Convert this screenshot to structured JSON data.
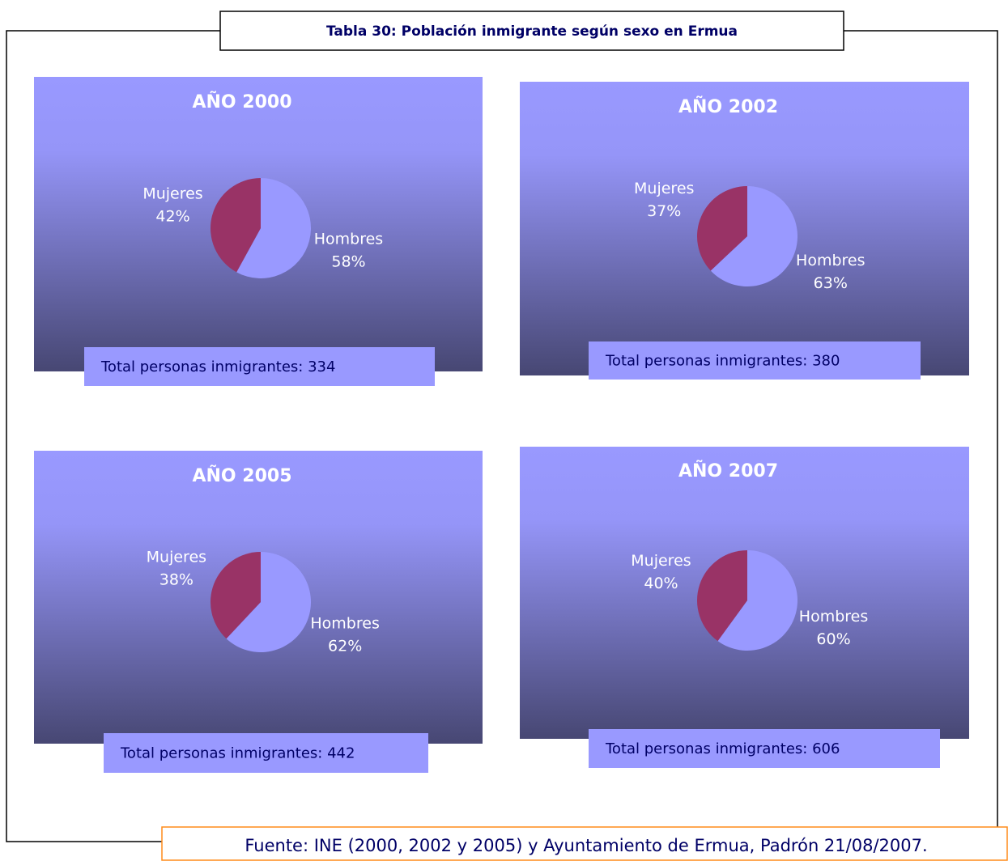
{
  "title": "Tabla 30: Población inmigrante según sexo en Ermua",
  "source": "Fuente: INE (2000, 2002 y 2005) y Ayuntamiento de Ermua, Padrón 21/08/2007.",
  "chart_data": [
    {
      "type": "pie",
      "title": "AÑO 2000",
      "categories": [
        "Hombres",
        "Mujeres"
      ],
      "values": [
        58,
        42
      ],
      "value_labels": [
        "58%",
        "42%"
      ],
      "colors": [
        "#9999ff",
        "#993366"
      ],
      "note": "Total personas inmigrantes: 334"
    },
    {
      "type": "pie",
      "title": "AÑO 2002",
      "categories": [
        "Hombres",
        "Mujeres"
      ],
      "values": [
        63,
        37
      ],
      "value_labels": [
        "63%",
        "37%"
      ],
      "colors": [
        "#9999ff",
        "#993366"
      ],
      "note": "Total personas inmigrantes: 380"
    },
    {
      "type": "pie",
      "title": "AÑO 2005",
      "categories": [
        "Hombres",
        "Mujeres"
      ],
      "values": [
        62,
        38
      ],
      "value_labels": [
        "62%",
        "38%"
      ],
      "colors": [
        "#9999ff",
        "#993366"
      ],
      "note": "Total personas inmigrantes: 442"
    },
    {
      "type": "pie",
      "title": "AÑO 2007",
      "categories": [
        "Hombres",
        "Mujeres"
      ],
      "values": [
        60,
        40
      ],
      "value_labels": [
        "60%",
        "40%"
      ],
      "colors": [
        "#9999ff",
        "#993366"
      ],
      "note": "Total personas inmigrantes: 606"
    }
  ]
}
